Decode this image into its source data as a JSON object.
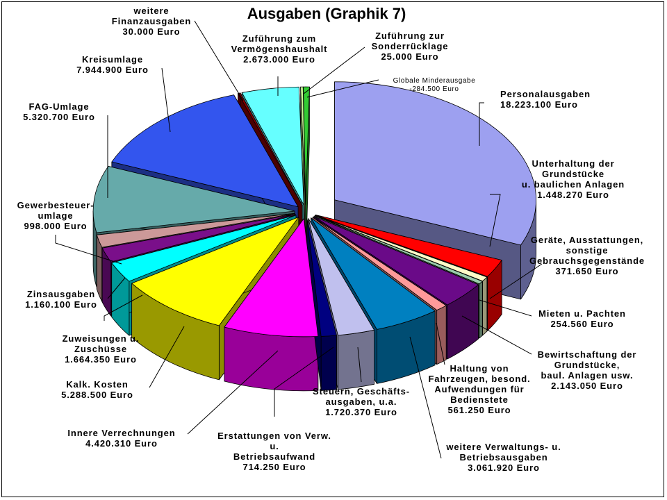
{
  "chart_data": {
    "type": "pie",
    "title": "Ausgaben (Graphik 7)",
    "unit": "Euro",
    "slices": [
      {
        "label": "Personalausgaben",
        "value_text": "18.223.100 Euro",
        "value": 18223100,
        "color": "#9da0f0",
        "exploded": true
      },
      {
        "label": "Unterhaltung der Grundstücke u. baulichen Anlagen",
        "value_text": "1.448.270 Euro",
        "value": 1448270,
        "color": "#ff0000"
      },
      {
        "label": "Geräte, Ausstattungen, sonstige Gebrauchsgegenstände",
        "value_text": "371.650 Euro",
        "value": 371650,
        "color": "#fffbc8"
      },
      {
        "label": "Mieten u. Pachten",
        "value_text": "254.560 Euro",
        "value": 254560,
        "color": "#99ccaa"
      },
      {
        "label": "Bewirtschaftung der Grundstücke, baul. Anlagen usw.",
        "value_text": "2.143.050 Euro",
        "value": 2143050,
        "color": "#6a0a88"
      },
      {
        "label": "Haltung von Fahrzeugen, besond. Aufwendungen für Bedienstete",
        "value_text": "561.250 Euro",
        "value": 561250,
        "color": "#ff9a9a"
      },
      {
        "label": "weitere Verwaltungs- u. Betriebsausgaben",
        "value_text": "3.061.920 Euro",
        "value": 3061920,
        "color": "#0080c0"
      },
      {
        "label": "Steuern, Geschäftsausgaben, u.a.",
        "value_text": "1.720.370 Euro",
        "value": 1720370,
        "color": "#c0c0ee"
      },
      {
        "label": "Erstattungen von Verw. u. Betriebsaufwand",
        "value_text": "714.250 Euro",
        "value": 714250,
        "color": "#000080"
      },
      {
        "label": "Innere Verrechnungen",
        "value_text": "4.420.310 Euro",
        "value": 4420310,
        "color": "#ff00ff"
      },
      {
        "label": "Kalk. Kosten",
        "value_text": "5.288.500 Euro",
        "value": 5288500,
        "color": "#ffff00"
      },
      {
        "label": "Zuweisungen u. Zuschüsse",
        "value_text": "1.664.350 Euro",
        "value": 1664350,
        "color": "#00ffff"
      },
      {
        "label": "Zinsausgaben",
        "value_text": "1.160.100 Euro",
        "value": 1160100,
        "color": "#7a0f8a"
      },
      {
        "label": "Gewerbesteuer-umlage",
        "value_text": "998.000 Euro",
        "value": 998000,
        "color": "#cc9999"
      },
      {
        "label": "FAG-Umlage",
        "value_text": "5.320.700 Euro",
        "value": 5320700,
        "color": "#66aaaa"
      },
      {
        "label": "Kreisumlage",
        "value_text": "7.944.900 Euro",
        "value": 7944900,
        "color": "#3355ee"
      },
      {
        "label": "weitere Finanzausgaben",
        "value_text": "30.000 Euro",
        "value": 30000,
        "color": "#880000"
      },
      {
        "label": "Zuführung zum Vermögenshaushalt",
        "value_text": "2.673.000 Euro",
        "value": 2673000,
        "color": "#66ffff"
      },
      {
        "label": "Zuführung zur Sonderrücklage",
        "value_text": "25.000 Euro",
        "value": 25000,
        "color": "#ccff99"
      },
      {
        "label": "Globale Minderausgabe",
        "value_text": "-284.500 Euro",
        "value": -284500,
        "color": "#33cc33"
      }
    ]
  },
  "labels": [
    {
      "lines": [
        "Personalausgaben",
        "18.223.100 Euro"
      ]
    },
    {
      "lines": [
        "Unterhaltung der",
        "Grundstücke",
        "u. baulichen Anlagen",
        "1.448.270 Euro"
      ]
    },
    {
      "lines": [
        "Geräte, Ausstattungen,",
        "sonstige",
        "Gebrauchsgegenstände",
        "371.650 Euro"
      ]
    },
    {
      "lines": [
        "Mieten u. Pachten",
        "254.560 Euro"
      ]
    },
    {
      "lines": [
        "Bewirtschaftung der",
        "Grundstücke,",
        "baul. Anlagen usw.",
        "2.143.050 Euro"
      ]
    },
    {
      "lines": [
        "Haltung von",
        "Fahrzeugen, besond.",
        "Aufwendungen für",
        "Bedienstete",
        "561.250 Euro"
      ]
    },
    {
      "lines": [
        "weitere Verwaltungs- u.",
        "Betriebsausgaben",
        "3.061.920 Euro"
      ]
    },
    {
      "lines": [
        "Steuern, Geschäfts-",
        "ausgaben, u.a.",
        "1.720.370 Euro"
      ]
    },
    {
      "lines": [
        "Erstattungen von Verw.",
        "u.",
        "Betriebsaufwand",
        "714.250 Euro"
      ]
    },
    {
      "lines": [
        "Innere Verrechnungen",
        "4.420.310 Euro"
      ]
    },
    {
      "lines": [
        "Kalk. Kosten",
        "5.288.500 Euro"
      ]
    },
    {
      "lines": [
        "Zuweisungen u.",
        "Zuschüsse",
        "1.664.350 Euro"
      ]
    },
    {
      "lines": [
        "Zinsausgaben",
        "1.160.100 Euro"
      ]
    },
    {
      "lines": [
        "Gewerbesteuer-",
        "umlage",
        "998.000 Euro"
      ]
    },
    {
      "lines": [
        "FAG-Umlage",
        "5.320.700 Euro"
      ]
    },
    {
      "lines": [
        "Kreisumlage",
        "7.944.900 Euro"
      ]
    },
    {
      "lines": [
        "weitere",
        "Finanzausgaben",
        "30.000 Euro"
      ]
    },
    {
      "lines": [
        "Zuführung zum",
        "Vermögenshaushalt",
        "2.673.000 Euro"
      ]
    },
    {
      "lines": [
        "Zuführung zur",
        "Sonderrücklage",
        "25.000 Euro"
      ]
    },
    {
      "lines": [
        "Globale Minderausgabe",
        "-284.500 Euro"
      ]
    }
  ]
}
